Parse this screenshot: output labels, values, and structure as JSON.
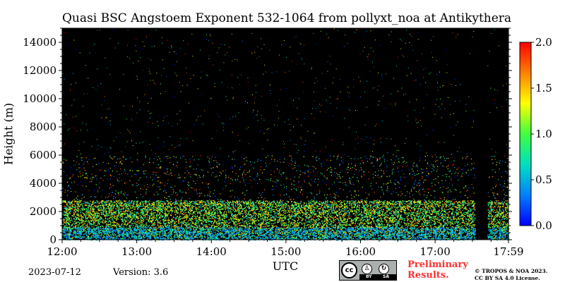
{
  "chart_data": {
    "type": "heatmap",
    "title": "Quasi BSC Angstoem Exponent 532-1064 from pollyxt_noa at Antikythera",
    "xlabel": "UTC",
    "ylabel": "Height (m)",
    "x_range": [
      "12:00",
      "17:59"
    ],
    "ylim": [
      0,
      15000
    ],
    "x_ticks": [
      "12:00",
      "13:00",
      "14:00",
      "15:00",
      "16:00",
      "17:00",
      "17:59"
    ],
    "y_ticks": [
      0,
      2000,
      4000,
      6000,
      8000,
      10000,
      12000,
      14000
    ],
    "background_color": "#000000",
    "colorbar": {
      "range": [
        0.0,
        2.0
      ],
      "ticks": [
        "0.0",
        "0.5",
        "1.0",
        "1.5",
        "2.0"
      ],
      "colormap": [
        "#0000ff",
        "#0080ff",
        "#00e0c0",
        "#40ff40",
        "#ffff00",
        "#ff8000",
        "#ff0000"
      ]
    },
    "description_layers": {
      "dense_layer_top_m": 2500,
      "sparse_layer_top_m": 6000,
      "data_gap_utc": [
        "17:32",
        "17:42"
      ]
    }
  },
  "footer": {
    "date": "2023-07-12",
    "version": "Version: 3.6",
    "preliminary_line1": "Preliminary",
    "preliminary_line2": "Results.",
    "copyright_line1": "© TROPOS & NOA 2023.",
    "copyright_line2": "CC BY SA 4.0 License.",
    "license_badge": {
      "cc": "cc",
      "by": "BY",
      "sa": "SA"
    }
  }
}
